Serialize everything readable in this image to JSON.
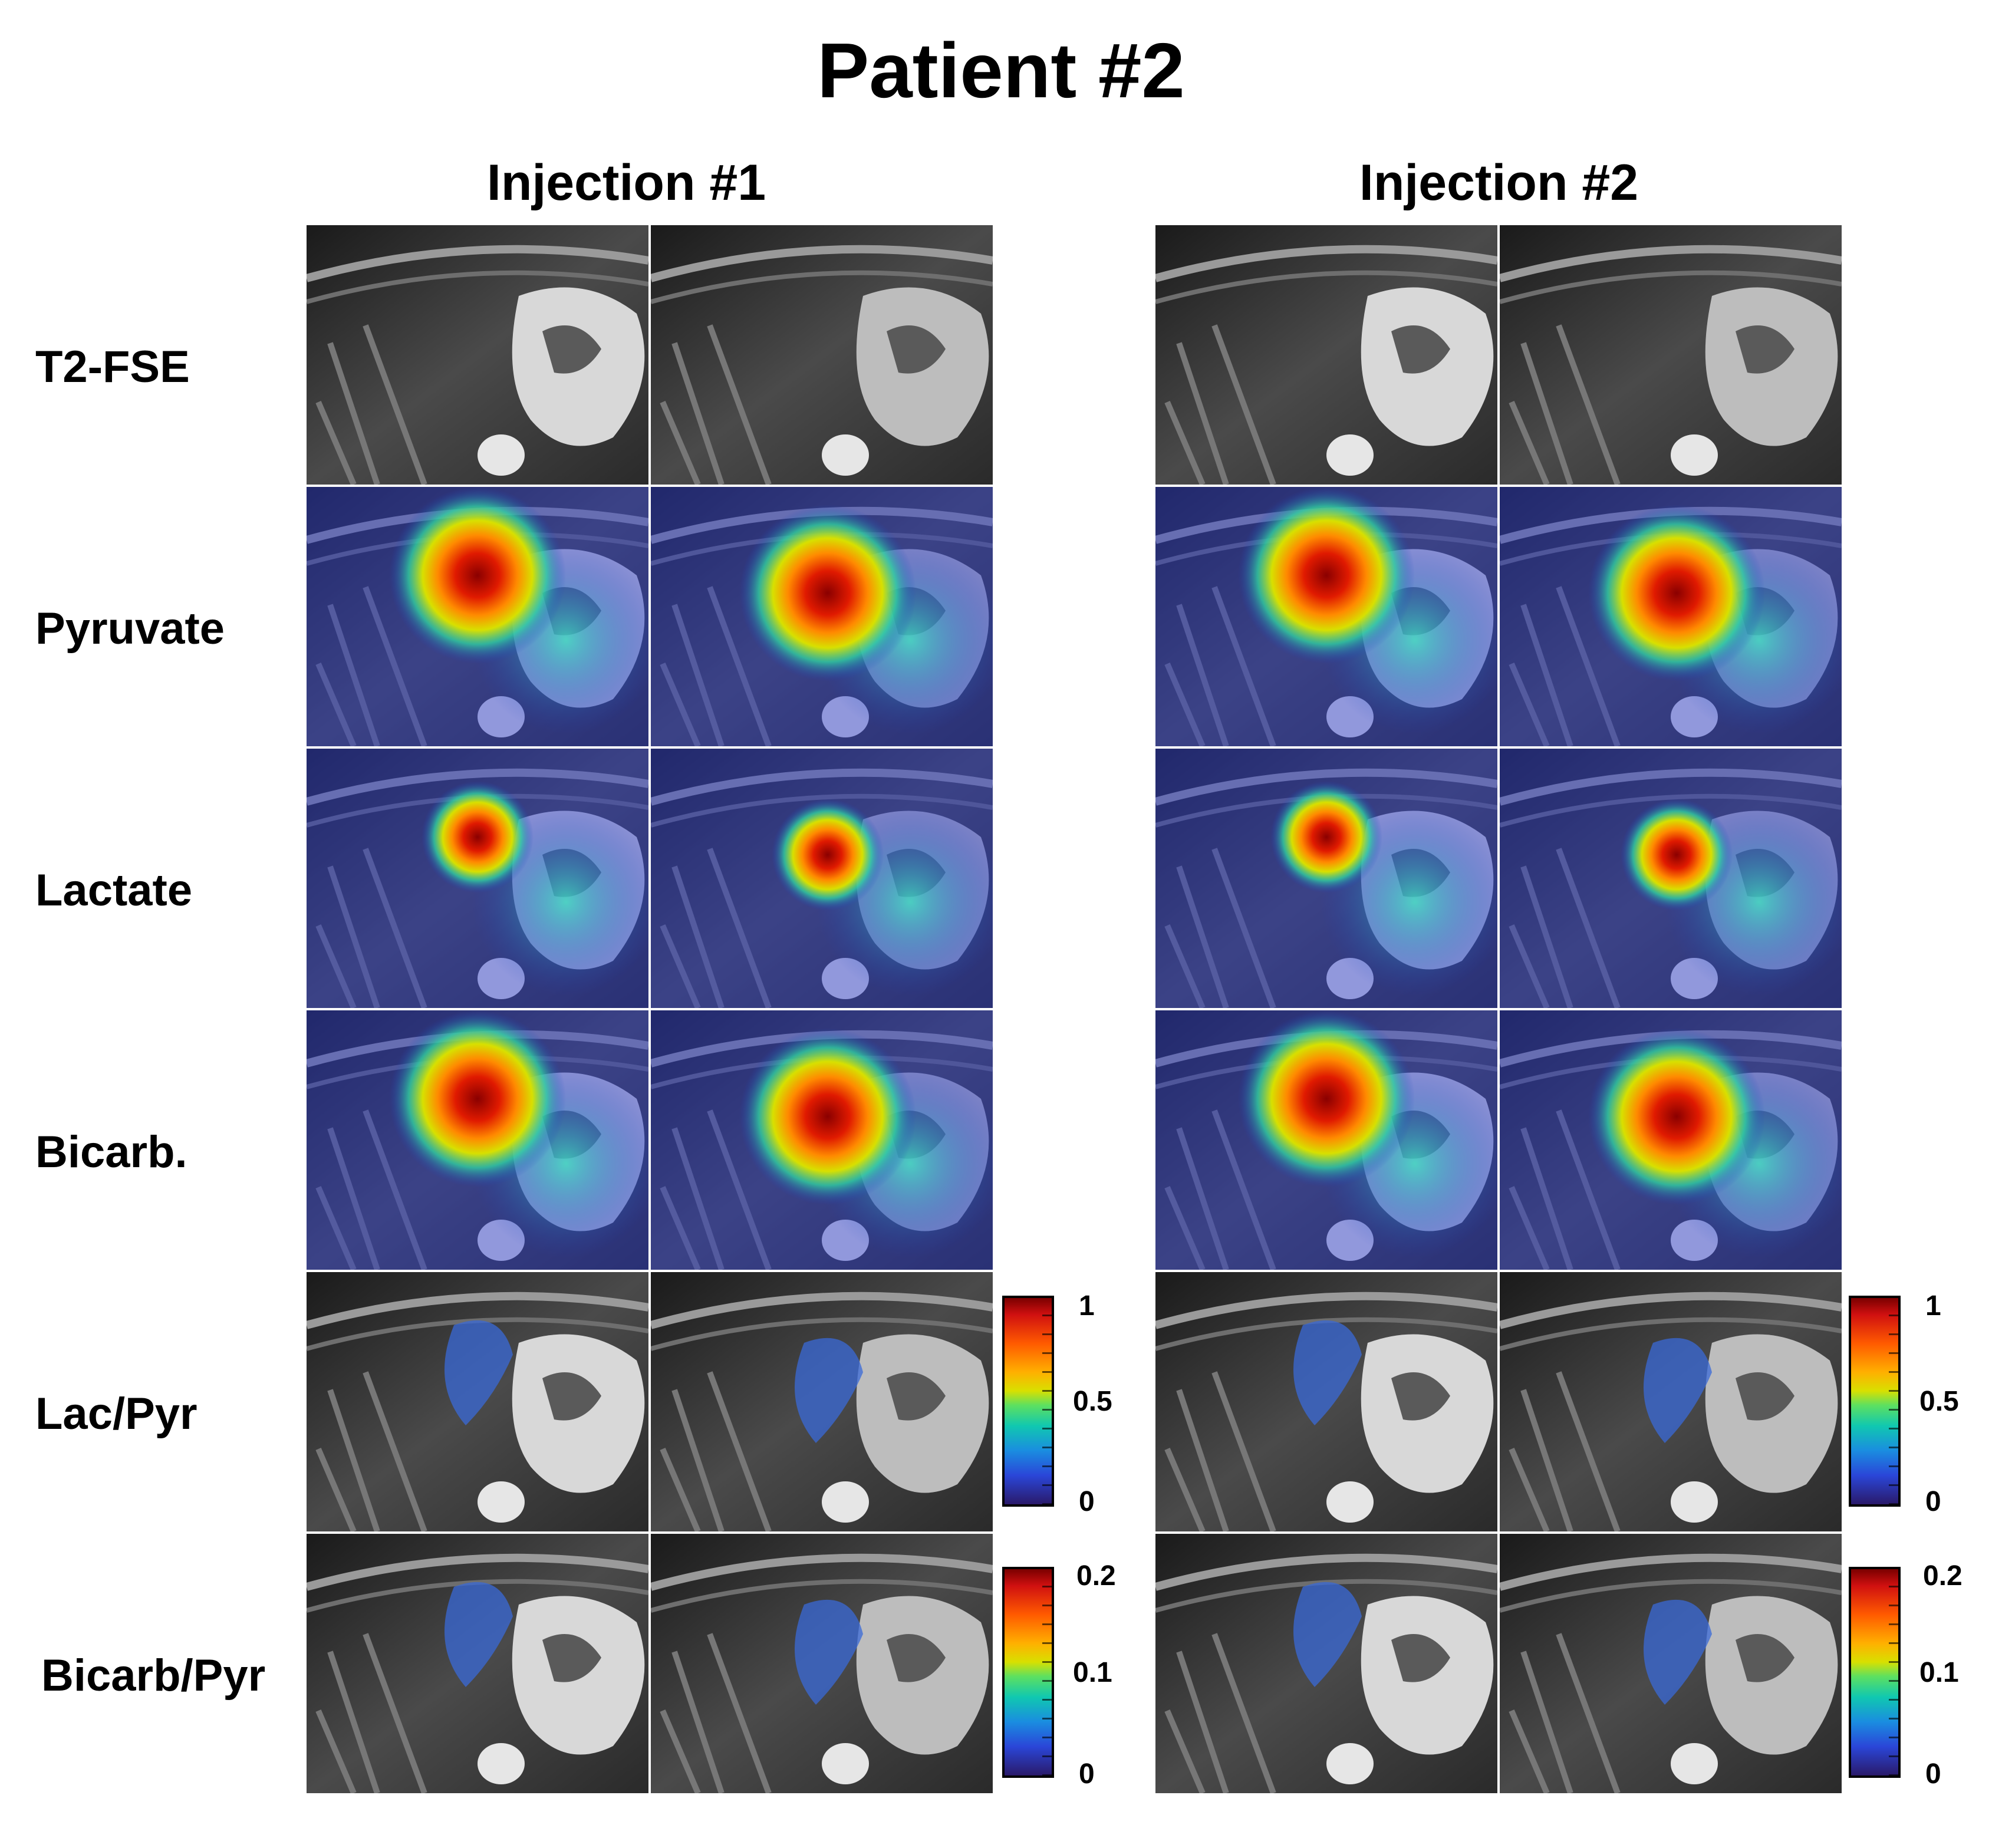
{
  "title": "Patient #2",
  "columns": [
    "Injection #1",
    "Injection #2"
  ],
  "rows": [
    "T2-FSE",
    "Pyruvate",
    "Lactate",
    "Bicarb.",
    "Lac/Pyr",
    "Bicarb/Pyr"
  ],
  "colorbars": {
    "lac_pyr": {
      "max": "1",
      "mid": "0.5",
      "min": "0"
    },
    "bicarb_pyr": {
      "max": "0.2",
      "mid": "0.1",
      "min": "0"
    }
  }
}
